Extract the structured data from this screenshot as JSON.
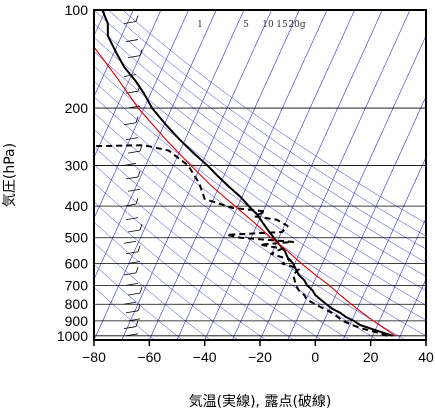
{
  "chart_data": {
    "type": "line",
    "title": "",
    "xlabel": "気温(実線), 露点(破線)",
    "ylabel": "気圧(hPa)",
    "xlim": [
      -80,
      40
    ],
    "ylim": [
      1030,
      100
    ],
    "y_scale": "log",
    "x_ticks": [
      -80,
      -60,
      -40,
      -20,
      0,
      20,
      40
    ],
    "y_ticks": [
      100,
      200,
      300,
      400,
      500,
      600,
      700,
      800,
      900,
      1000
    ],
    "mixing_ratio_labels": [
      "1",
      "5",
      "10",
      "15",
      "20g"
    ],
    "colors": {
      "temperature": "#000000",
      "dewpoint": "#000000",
      "parcel": "#dd0000",
      "guide_lines": "#3333cc",
      "grid": "#000000"
    },
    "series": [
      {
        "name": "temperature",
        "style": "solid",
        "points": [
          [
            28,
            1000
          ],
          [
            24,
            975
          ],
          [
            20,
            950
          ],
          [
            16,
            925
          ],
          [
            14,
            900
          ],
          [
            11,
            875
          ],
          [
            9,
            850
          ],
          [
            6,
            825
          ],
          [
            4,
            800
          ],
          [
            2,
            775
          ],
          [
            0,
            750
          ],
          [
            -1,
            725
          ],
          [
            -3,
            700
          ],
          [
            -4,
            675
          ],
          [
            -6,
            650
          ],
          [
            -7,
            625
          ],
          [
            -8,
            600
          ],
          [
            -10,
            575
          ],
          [
            -11,
            550
          ],
          [
            -13,
            525
          ],
          [
            -15,
            500
          ],
          [
            -17,
            475
          ],
          [
            -19,
            450
          ],
          [
            -21,
            425
          ],
          [
            -24,
            400
          ],
          [
            -27,
            375
          ],
          [
            -31,
            350
          ],
          [
            -35,
            325
          ],
          [
            -39,
            300
          ],
          [
            -44,
            275
          ],
          [
            -49,
            250
          ],
          [
            -54,
            225
          ],
          [
            -59,
            200
          ],
          [
            -62,
            180
          ],
          [
            -65,
            165
          ],
          [
            -69,
            150
          ],
          [
            -72,
            135
          ],
          [
            -75,
            120
          ],
          [
            -75,
            110
          ],
          [
            -77,
            100
          ]
        ]
      },
      {
        "name": "dewpoint",
        "style": "dashed",
        "points": [
          [
            26,
            1000
          ],
          [
            22,
            975
          ],
          [
            17,
            950
          ],
          [
            13,
            925
          ],
          [
            10,
            900
          ],
          [
            6,
            850
          ],
          [
            3,
            825
          ],
          [
            0,
            800
          ],
          [
            -3,
            775
          ],
          [
            -4,
            750
          ],
          [
            -6,
            725
          ],
          [
            -7,
            700
          ],
          [
            -8,
            650
          ],
          [
            -6,
            625
          ],
          [
            -9,
            610
          ],
          [
            -12,
            600
          ],
          [
            -9,
            585
          ],
          [
            -16,
            560
          ],
          [
            -12,
            540
          ],
          [
            -20,
            525
          ],
          [
            -8,
            515
          ],
          [
            -27,
            500
          ],
          [
            -32,
            490
          ],
          [
            -12,
            480
          ],
          [
            -10,
            460
          ],
          [
            -14,
            440
          ],
          [
            -22,
            430
          ],
          [
            -18,
            415
          ],
          [
            -30,
            405
          ],
          [
            -40,
            380
          ],
          [
            -42,
            340
          ],
          [
            -46,
            300
          ],
          [
            -53,
            270
          ],
          [
            -62,
            260
          ],
          [
            -82,
            262
          ]
        ]
      },
      {
        "name": "parcel",
        "style": "solid",
        "points": [
          [
            29,
            1000
          ],
          [
            25,
            950
          ],
          [
            21,
            900
          ],
          [
            17,
            850
          ],
          [
            13,
            800
          ],
          [
            9,
            750
          ],
          [
            5,
            700
          ],
          [
            0,
            650
          ],
          [
            -5,
            600
          ],
          [
            -10,
            550
          ],
          [
            -16,
            500
          ],
          [
            -22,
            450
          ],
          [
            -29,
            400
          ],
          [
            -37,
            350
          ],
          [
            -45,
            300
          ],
          [
            -54,
            250
          ],
          [
            -64,
            200
          ],
          [
            -72,
            160
          ],
          [
            -80,
            130
          ]
        ]
      }
    ]
  }
}
